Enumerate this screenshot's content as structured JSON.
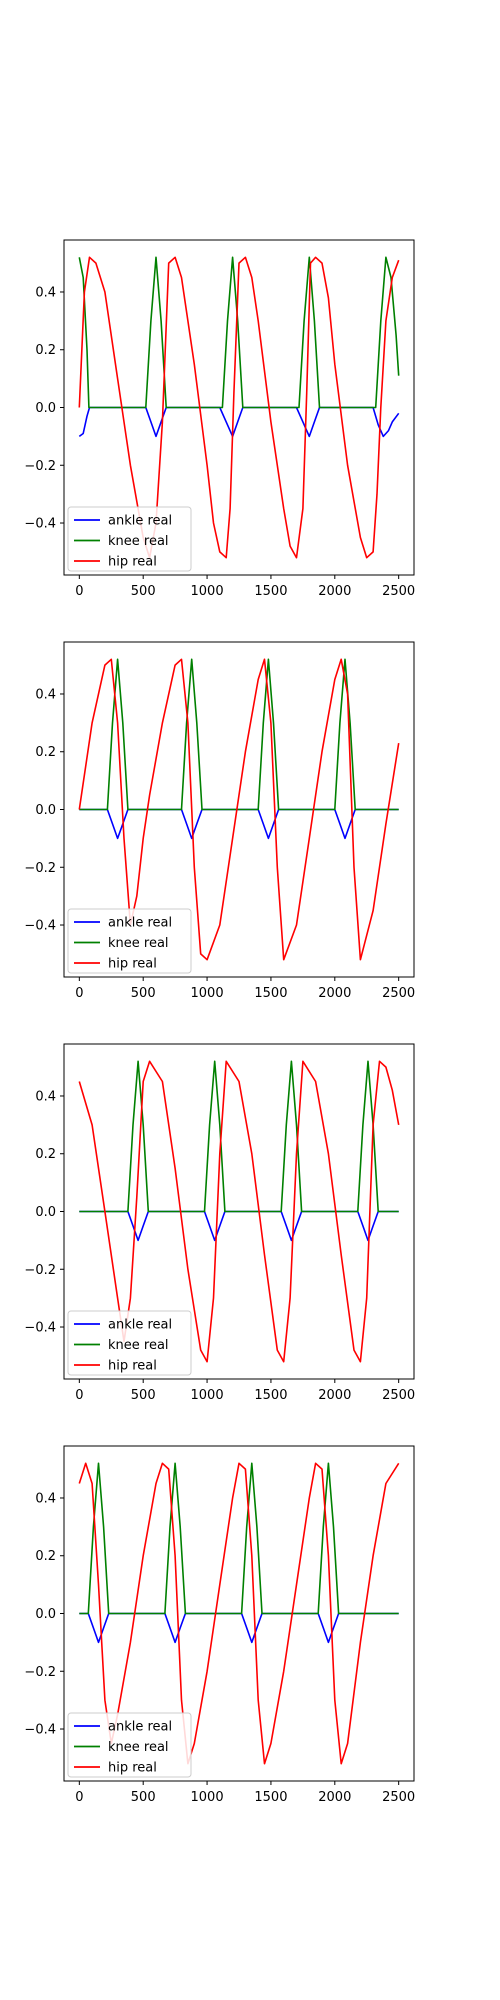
{
  "chart_data": [
    {
      "type": "line",
      "xlim": [
        -120,
        2620
      ],
      "ylim": [
        -0.58,
        0.58
      ],
      "xticks": [
        "0",
        "500",
        "1000",
        "1500",
        "2000",
        "2500"
      ],
      "yticks": [
        "−0.4",
        "−0.2",
        "0.0",
        "0.2",
        "0.4"
      ],
      "legend": "lower-left",
      "series": [
        {
          "name": "ankle real",
          "color": "#0000ff",
          "x": [
            0,
            30,
            60,
            80,
            520,
            560,
            600,
            640,
            680,
            1100,
            1150,
            1200,
            1240,
            1280,
            1700,
            1750,
            1800,
            1840,
            1880,
            2300,
            2340,
            2380,
            2420,
            2450,
            2500
          ],
          "y": [
            -0.1,
            -0.09,
            -0.03,
            0,
            0,
            -0.05,
            -0.1,
            -0.05,
            0,
            0,
            -0.05,
            -0.1,
            -0.05,
            0,
            0,
            -0.05,
            -0.1,
            -0.05,
            0,
            0,
            -0.06,
            -0.1,
            -0.08,
            -0.05,
            -0.02
          ]
        },
        {
          "name": "knee real",
          "color": "#008000",
          "x": [
            0,
            30,
            60,
            75,
            520,
            560,
            600,
            640,
            680,
            1120,
            1160,
            1200,
            1240,
            1280,
            1720,
            1760,
            1800,
            1840,
            1880,
            2320,
            2360,
            2400,
            2440,
            2480,
            2500
          ],
          "y": [
            0.52,
            0.45,
            0.2,
            0,
            0,
            0.3,
            0.52,
            0.3,
            0,
            0,
            0.3,
            0.52,
            0.3,
            0,
            0,
            0.3,
            0.52,
            0.3,
            0,
            0,
            0.3,
            0.52,
            0.45,
            0.25,
            0.11
          ]
        },
        {
          "name": "hip real",
          "color": "#ff0000",
          "x": [
            0,
            40,
            80,
            130,
            200,
            300,
            400,
            500,
            550,
            600,
            650,
            700,
            750,
            800,
            900,
            1000,
            1050,
            1100,
            1150,
            1180,
            1210,
            1250,
            1300,
            1350,
            1400,
            1500,
            1600,
            1650,
            1700,
            1750,
            1780,
            1810,
            1850,
            1900,
            1950,
            2000,
            2100,
            2200,
            2250,
            2300,
            2330,
            2360,
            2400,
            2450,
            2500
          ],
          "y": [
            0,
            0.4,
            0.52,
            0.5,
            0.4,
            0.1,
            -0.2,
            -0.45,
            -0.52,
            -0.4,
            -0.05,
            0.5,
            0.52,
            0.45,
            0.15,
            -0.2,
            -0.4,
            -0.5,
            -0.52,
            -0.35,
            0.05,
            0.5,
            0.52,
            0.45,
            0.3,
            -0.05,
            -0.35,
            -0.48,
            -0.52,
            -0.35,
            0.05,
            0.5,
            0.52,
            0.5,
            0.38,
            0.15,
            -0.2,
            -0.45,
            -0.52,
            -0.5,
            -0.3,
            0,
            0.3,
            0.45,
            0.51
          ]
        }
      ]
    },
    {
      "type": "line",
      "xlim": [
        -120,
        2620
      ],
      "ylim": [
        -0.58,
        0.58
      ],
      "xticks": [
        "0",
        "500",
        "1000",
        "1500",
        "2000",
        "2500"
      ],
      "yticks": [
        "−0.4",
        "−0.2",
        "0.0",
        "0.2",
        "0.4"
      ],
      "legend": "lower-left",
      "series": [
        {
          "name": "ankle real",
          "color": "#0000ff",
          "x": [
            0,
            220,
            260,
            300,
            340,
            380,
            800,
            840,
            880,
            920,
            960,
            1400,
            1440,
            1480,
            1520,
            1560,
            2000,
            2040,
            2080,
            2120,
            2160,
            2500
          ],
          "y": [
            0,
            0,
            -0.05,
            -0.1,
            -0.05,
            0,
            0,
            -0.05,
            -0.1,
            -0.05,
            0,
            0,
            -0.05,
            -0.1,
            -0.05,
            0,
            0,
            -0.05,
            -0.1,
            -0.05,
            0,
            0
          ]
        },
        {
          "name": "knee real",
          "color": "#008000",
          "x": [
            0,
            220,
            260,
            300,
            340,
            380,
            800,
            840,
            880,
            920,
            960,
            1400,
            1440,
            1480,
            1520,
            1560,
            2000,
            2040,
            2080,
            2120,
            2160,
            2500
          ],
          "y": [
            0,
            0,
            0.3,
            0.52,
            0.3,
            0,
            0,
            0.3,
            0.52,
            0.3,
            0,
            0,
            0.3,
            0.52,
            0.3,
            0,
            0,
            0.3,
            0.52,
            0.3,
            0,
            0
          ]
        },
        {
          "name": "hip real",
          "color": "#ff0000",
          "x": [
            0,
            100,
            200,
            250,
            300,
            350,
            400,
            450,
            500,
            550,
            650,
            750,
            800,
            850,
            900,
            950,
            1000,
            1100,
            1200,
            1300,
            1400,
            1450,
            1500,
            1550,
            1600,
            1700,
            1800,
            1900,
            2000,
            2050,
            2100,
            2150,
            2200,
            2300,
            2400,
            2500
          ],
          "y": [
            0,
            0.3,
            0.5,
            0.52,
            0.3,
            -0.1,
            -0.4,
            -0.3,
            -0.1,
            0.05,
            0.3,
            0.5,
            0.52,
            0.3,
            -0.2,
            -0.5,
            -0.52,
            -0.4,
            -0.1,
            0.2,
            0.45,
            0.52,
            0.3,
            -0.2,
            -0.52,
            -0.4,
            -0.1,
            0.2,
            0.45,
            0.52,
            0.4,
            -0.2,
            -0.52,
            -0.35,
            -0.05,
            0.23
          ]
        }
      ]
    },
    {
      "type": "line",
      "xlim": [
        -120,
        2620
      ],
      "ylim": [
        -0.58,
        0.58
      ],
      "xticks": [
        "0",
        "500",
        "1000",
        "1500",
        "2000",
        "2500"
      ],
      "yticks": [
        "−0.4",
        "−0.2",
        "0.0",
        "0.2",
        "0.4"
      ],
      "legend": "lower-left",
      "series": [
        {
          "name": "ankle real",
          "color": "#0000ff",
          "x": [
            0,
            380,
            420,
            460,
            500,
            540,
            980,
            1020,
            1060,
            1100,
            1140,
            1580,
            1620,
            1660,
            1700,
            1740,
            2180,
            2220,
            2260,
            2300,
            2340,
            2500
          ],
          "y": [
            0,
            0,
            -0.05,
            -0.1,
            -0.05,
            0,
            0,
            -0.05,
            -0.1,
            -0.05,
            0,
            0,
            -0.05,
            -0.1,
            -0.05,
            0,
            0,
            -0.05,
            -0.1,
            -0.05,
            0,
            0
          ]
        },
        {
          "name": "knee real",
          "color": "#008000",
          "x": [
            0,
            380,
            420,
            460,
            500,
            540,
            980,
            1020,
            1060,
            1100,
            1140,
            1580,
            1620,
            1660,
            1700,
            1740,
            2180,
            2220,
            2260,
            2300,
            2340,
            2500
          ],
          "y": [
            0,
            0,
            0.3,
            0.52,
            0.3,
            0,
            0,
            0.3,
            0.52,
            0.3,
            0,
            0,
            0.3,
            0.52,
            0.3,
            0,
            0,
            0.3,
            0.52,
            0.3,
            0,
            0
          ]
        },
        {
          "name": "hip real",
          "color": "#ff0000",
          "x": [
            0,
            100,
            200,
            300,
            350,
            400,
            450,
            500,
            550,
            650,
            750,
            850,
            950,
            1000,
            1050,
            1100,
            1150,
            1250,
            1350,
            1450,
            1550,
            1600,
            1650,
            1700,
            1750,
            1850,
            1950,
            2050,
            2150,
            2200,
            2250,
            2300,
            2350,
            2400,
            2450,
            2500
          ],
          "y": [
            0.45,
            0.3,
            0,
            -0.3,
            -0.45,
            -0.3,
            0.05,
            0.45,
            0.52,
            0.45,
            0.15,
            -0.2,
            -0.48,
            -0.52,
            -0.3,
            0.2,
            0.52,
            0.45,
            0.2,
            -0.15,
            -0.48,
            -0.52,
            -0.3,
            0.2,
            0.52,
            0.45,
            0.2,
            -0.15,
            -0.48,
            -0.52,
            -0.3,
            0.3,
            0.52,
            0.5,
            0.42,
            0.3
          ]
        }
      ]
    },
    {
      "type": "line",
      "xlim": [
        -120,
        2620
      ],
      "ylim": [
        -0.58,
        0.58
      ],
      "xticks": [
        "0",
        "500",
        "1000",
        "1500",
        "2000",
        "2500"
      ],
      "yticks": [
        "−0.4",
        "−0.2",
        "0.0",
        "0.2",
        "0.4"
      ],
      "legend": "lower-left",
      "series": [
        {
          "name": "ankle real",
          "color": "#0000ff",
          "x": [
            0,
            70,
            110,
            150,
            190,
            230,
            670,
            710,
            750,
            790,
            830,
            1270,
            1310,
            1350,
            1390,
            1430,
            1870,
            1910,
            1950,
            1990,
            2030,
            2500
          ],
          "y": [
            0,
            0,
            -0.05,
            -0.1,
            -0.05,
            0,
            0,
            -0.05,
            -0.1,
            -0.05,
            0,
            0,
            -0.05,
            -0.1,
            -0.05,
            0,
            0,
            -0.05,
            -0.1,
            -0.05,
            0,
            0
          ]
        },
        {
          "name": "knee real",
          "color": "#008000",
          "x": [
            0,
            70,
            110,
            150,
            190,
            230,
            670,
            710,
            750,
            790,
            830,
            1270,
            1310,
            1350,
            1390,
            1430,
            1870,
            1910,
            1950,
            1990,
            2030,
            2500
          ],
          "y": [
            0,
            0,
            0.3,
            0.52,
            0.3,
            0,
            0,
            0.3,
            0.52,
            0.3,
            0,
            0,
            0.3,
            0.52,
            0.3,
            0,
            0,
            0.3,
            0.52,
            0.3,
            0,
            0
          ]
        },
        {
          "name": "hip real",
          "color": "#ff0000",
          "x": [
            0,
            50,
            100,
            150,
            200,
            250,
            300,
            400,
            500,
            600,
            650,
            700,
            750,
            800,
            850,
            900,
            1000,
            1100,
            1200,
            1250,
            1300,
            1350,
            1400,
            1450,
            1500,
            1600,
            1700,
            1800,
            1850,
            1900,
            1950,
            2000,
            2050,
            2100,
            2200,
            2300,
            2400,
            2500
          ],
          "y": [
            0.45,
            0.52,
            0.45,
            0.1,
            -0.3,
            -0.45,
            -0.35,
            -0.1,
            0.2,
            0.45,
            0.52,
            0.5,
            0.2,
            -0.3,
            -0.52,
            -0.45,
            -0.2,
            0.1,
            0.4,
            0.52,
            0.5,
            0.2,
            -0.3,
            -0.52,
            -0.45,
            -0.2,
            0.1,
            0.4,
            0.52,
            0.5,
            0.2,
            -0.3,
            -0.52,
            -0.45,
            -0.1,
            0.2,
            0.45,
            0.52
          ]
        }
      ]
    }
  ]
}
